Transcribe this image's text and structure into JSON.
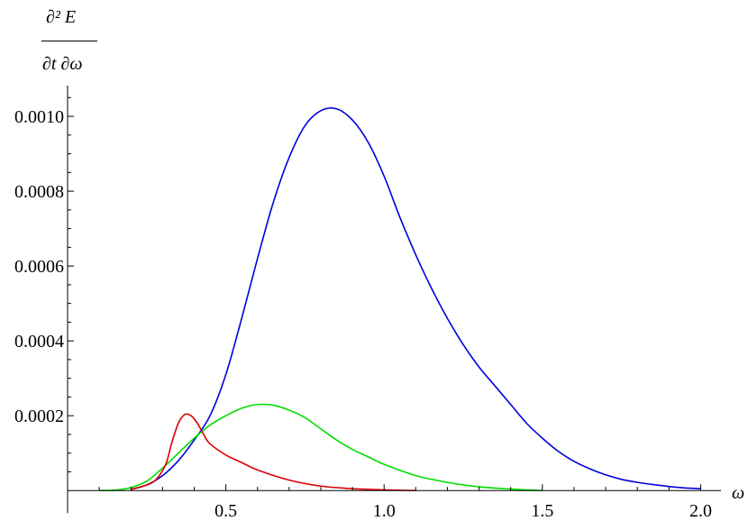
{
  "chart_data": {
    "type": "line",
    "title": "",
    "xlabel": "ω",
    "ylabel_numerator": "∂² E",
    "ylabel_denominator": "∂t ∂ω",
    "xlim": [
      0.0,
      2.05
    ],
    "ylim": [
      -5e-05,
      0.00107
    ],
    "x_ticks": [
      0.5,
      1.0,
      1.5,
      2.0
    ],
    "x_tick_labels": [
      "0.5",
      "1.0",
      "1.5",
      "2.0"
    ],
    "y_ticks": [
      0.0002,
      0.0004,
      0.0006,
      0.0008,
      0.001
    ],
    "y_tick_labels": [
      "0.0002",
      "0.0004",
      "0.0006",
      "0.0008",
      "0.0010"
    ],
    "grid": false,
    "series": [
      {
        "color": "#0000dd",
        "x": [
          0.2,
          0.25,
          0.3,
          0.35,
          0.4,
          0.45,
          0.5,
          0.55,
          0.6,
          0.65,
          0.7,
          0.75,
          0.8,
          0.85,
          0.9,
          0.95,
          1.0,
          1.05,
          1.1,
          1.15,
          1.2,
          1.25,
          1.3,
          1.35,
          1.4,
          1.45,
          1.5,
          1.55,
          1.6,
          1.65,
          1.7,
          1.75,
          1.8,
          1.85,
          1.9,
          1.95,
          2.0
        ],
        "y": [
          3e-06,
          1.5e-05,
          4e-05,
          8e-05,
          0.000135,
          0.0002,
          0.00031,
          0.00046,
          0.00062,
          0.00077,
          0.00089,
          0.000975,
          0.001015,
          0.00102,
          0.00099,
          0.00093,
          0.00084,
          0.00073,
          0.00063,
          0.00054,
          0.00046,
          0.00039,
          0.00033,
          0.00028,
          0.00023,
          0.00018,
          0.00014,
          0.000105,
          7.8e-05,
          5.8e-05,
          4.2e-05,
          3e-05,
          2.2e-05,
          1.6e-05,
          1.1e-05,
          7e-06,
          5e-06
        ]
      },
      {
        "color": "#00dd00",
        "x": [
          0.1,
          0.15,
          0.2,
          0.25,
          0.3,
          0.35,
          0.4,
          0.45,
          0.5,
          0.55,
          0.6,
          0.65,
          0.7,
          0.75,
          0.8,
          0.85,
          0.9,
          0.95,
          1.0,
          1.1,
          1.2,
          1.3,
          1.4,
          1.5
        ],
        "y": [
          0.0,
          1e-06,
          8e-06,
          2.5e-05,
          6e-05,
          0.0001,
          0.00014,
          0.000175,
          0.0002,
          0.00022,
          0.00023,
          0.000228,
          0.000215,
          0.000195,
          0.000165,
          0.000135,
          0.00011,
          9e-05,
          7e-05,
          4e-05,
          2.2e-05,
          1e-05,
          4e-06,
          0.0
        ]
      },
      {
        "color": "#dd0000",
        "x": [
          0.2,
          0.25,
          0.28,
          0.31,
          0.33,
          0.35,
          0.37,
          0.39,
          0.41,
          0.43,
          0.45,
          0.5,
          0.55,
          0.6,
          0.7,
          0.8,
          0.9,
          1.0,
          1.1
        ],
        "y": [
          3e-06,
          1.5e-05,
          3e-05,
          7e-05,
          0.00013,
          0.00018,
          0.000203,
          0.0002,
          0.00018,
          0.00015,
          0.000125,
          9.5e-05,
          7.5e-05,
          5.5e-05,
          2.8e-05,
          1.2e-05,
          5e-06,
          2e-06,
          0.0
        ]
      }
    ]
  }
}
